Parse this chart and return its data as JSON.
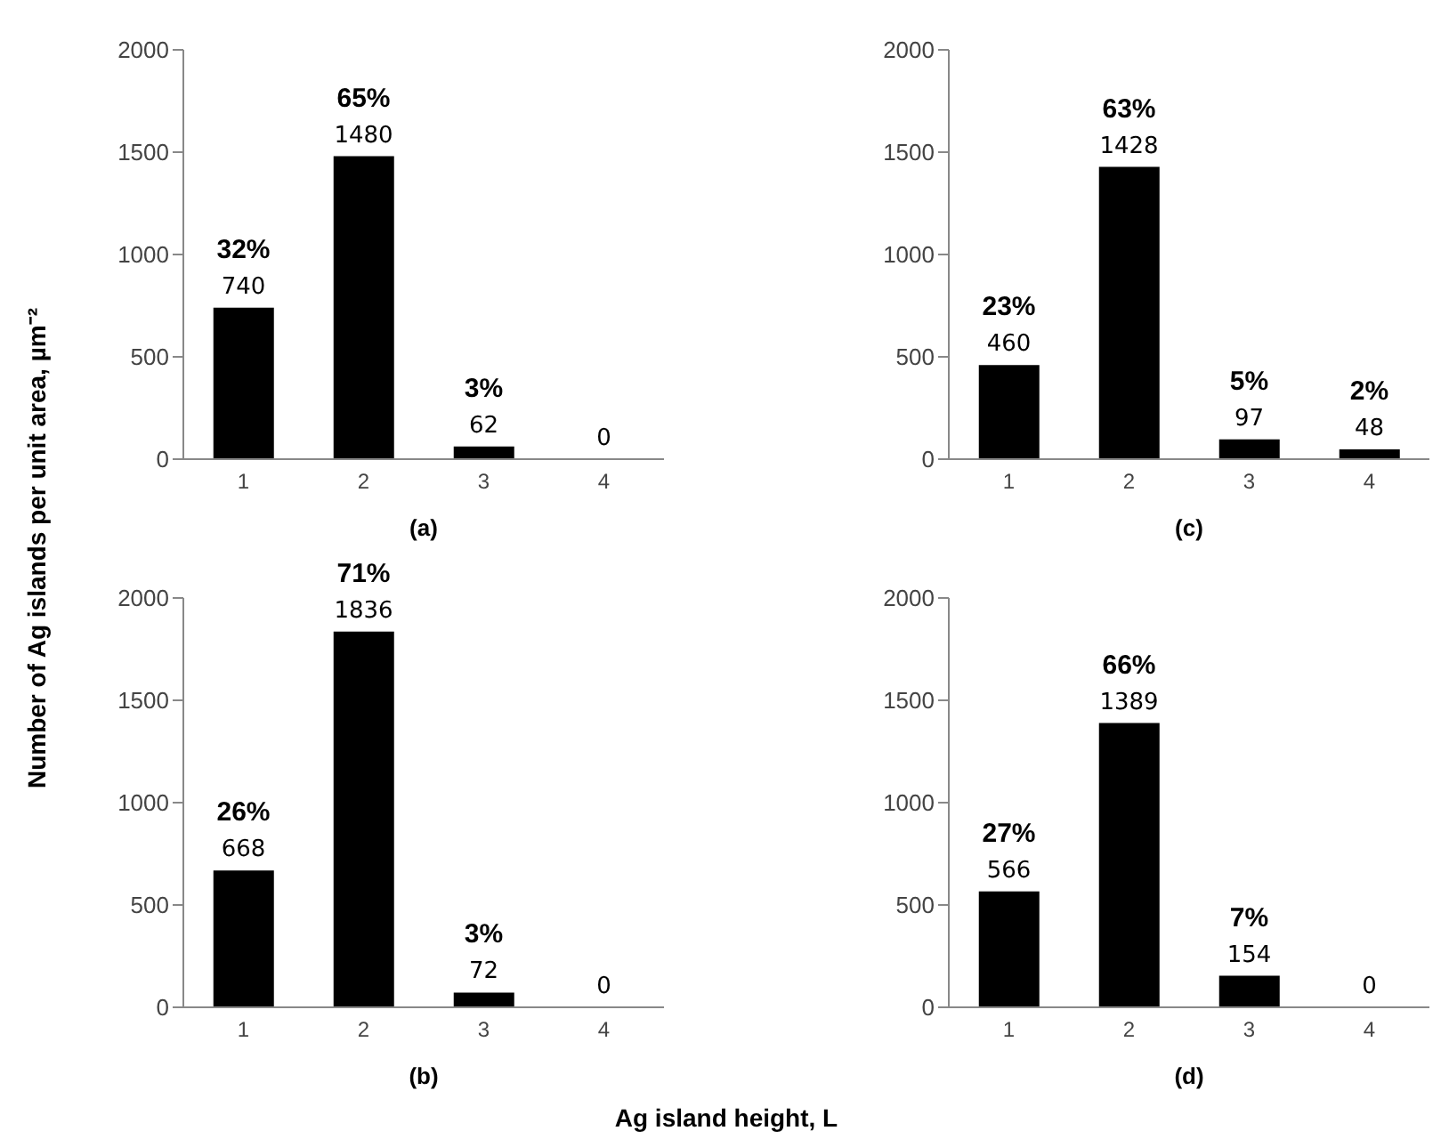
{
  "chart_data": [
    {
      "type": "bar",
      "xlabel": "(a)",
      "ylabel": "Number of Ag islands per unit area, µm⁻²",
      "categories": [
        "1",
        "2",
        "3",
        "4"
      ],
      "values": [
        740,
        1480,
        62,
        0
      ],
      "color": "#000000",
      "ylim": [
        0,
        2000
      ],
      "yticks": [
        0,
        500,
        1000,
        1500,
        2000
      ],
      "value_labels": [
        "740",
        "1480",
        "62",
        "0"
      ],
      "annotations": [
        {
          "text": "32%",
          "x": "1",
          "y": 740
        },
        {
          "text": "65%",
          "x": "2",
          "y": 1480
        },
        {
          "text": "3%",
          "x": "3",
          "y": 62
        }
      ]
    },
    {
      "type": "bar",
      "xlabel": "(c)",
      "categories": [
        "1",
        "2",
        "3",
        "4"
      ],
      "values": [
        460,
        1428,
        97,
        48
      ],
      "color": "#000000",
      "ylim": [
        0,
        2000
      ],
      "yticks": [
        0,
        500,
        1000,
        1500,
        2000
      ],
      "value_labels": [
        "460",
        "1428",
        "97",
        "48"
      ],
      "annotations": [
        {
          "text": "23%",
          "x": "1",
          "y": 460
        },
        {
          "text": "63%",
          "x": "2",
          "y": 1428
        },
        {
          "text": "5%",
          "x": "3",
          "y": 97
        },
        {
          "text": "2%",
          "x": "4",
          "y": 48
        }
      ]
    },
    {
      "type": "bar",
      "xlabel": "(b)",
      "categories": [
        "1",
        "2",
        "3",
        "4"
      ],
      "values": [
        668,
        1836,
        72,
        0
      ],
      "color": "#000000",
      "ylim": [
        0,
        2000
      ],
      "yticks": [
        0,
        500,
        1000,
        1500,
        2000
      ],
      "value_labels": [
        "668",
        "1836",
        "72",
        "0"
      ],
      "annotations": [
        {
          "text": "26%",
          "x": "1",
          "y": 668
        },
        {
          "text": "71%",
          "x": "2",
          "y": 1836
        },
        {
          "text": "3%",
          "x": "3",
          "y": 72
        },
        "Ag island height, L"
      ]
    },
    {
      "type": "bar",
      "xlabel": "(d)",
      "categories": [
        "1",
        "2",
        "3",
        "4"
      ],
      "values": [
        566,
        1389,
        154,
        0
      ],
      "color": "#000000",
      "ylim": [
        0,
        2000
      ],
      "yticks": [
        0,
        500,
        1000,
        1500,
        2000
      ],
      "value_labels": [
        "566",
        "1389",
        "154",
        "0"
      ],
      "annotations": [
        {
          "text": "27%",
          "x": "1",
          "y": 566
        },
        {
          "text": "66%",
          "x": "2",
          "y": 1389
        },
        {
          "text": "7%",
          "x": "3",
          "y": 154
        }
      ]
    }
  ]
}
